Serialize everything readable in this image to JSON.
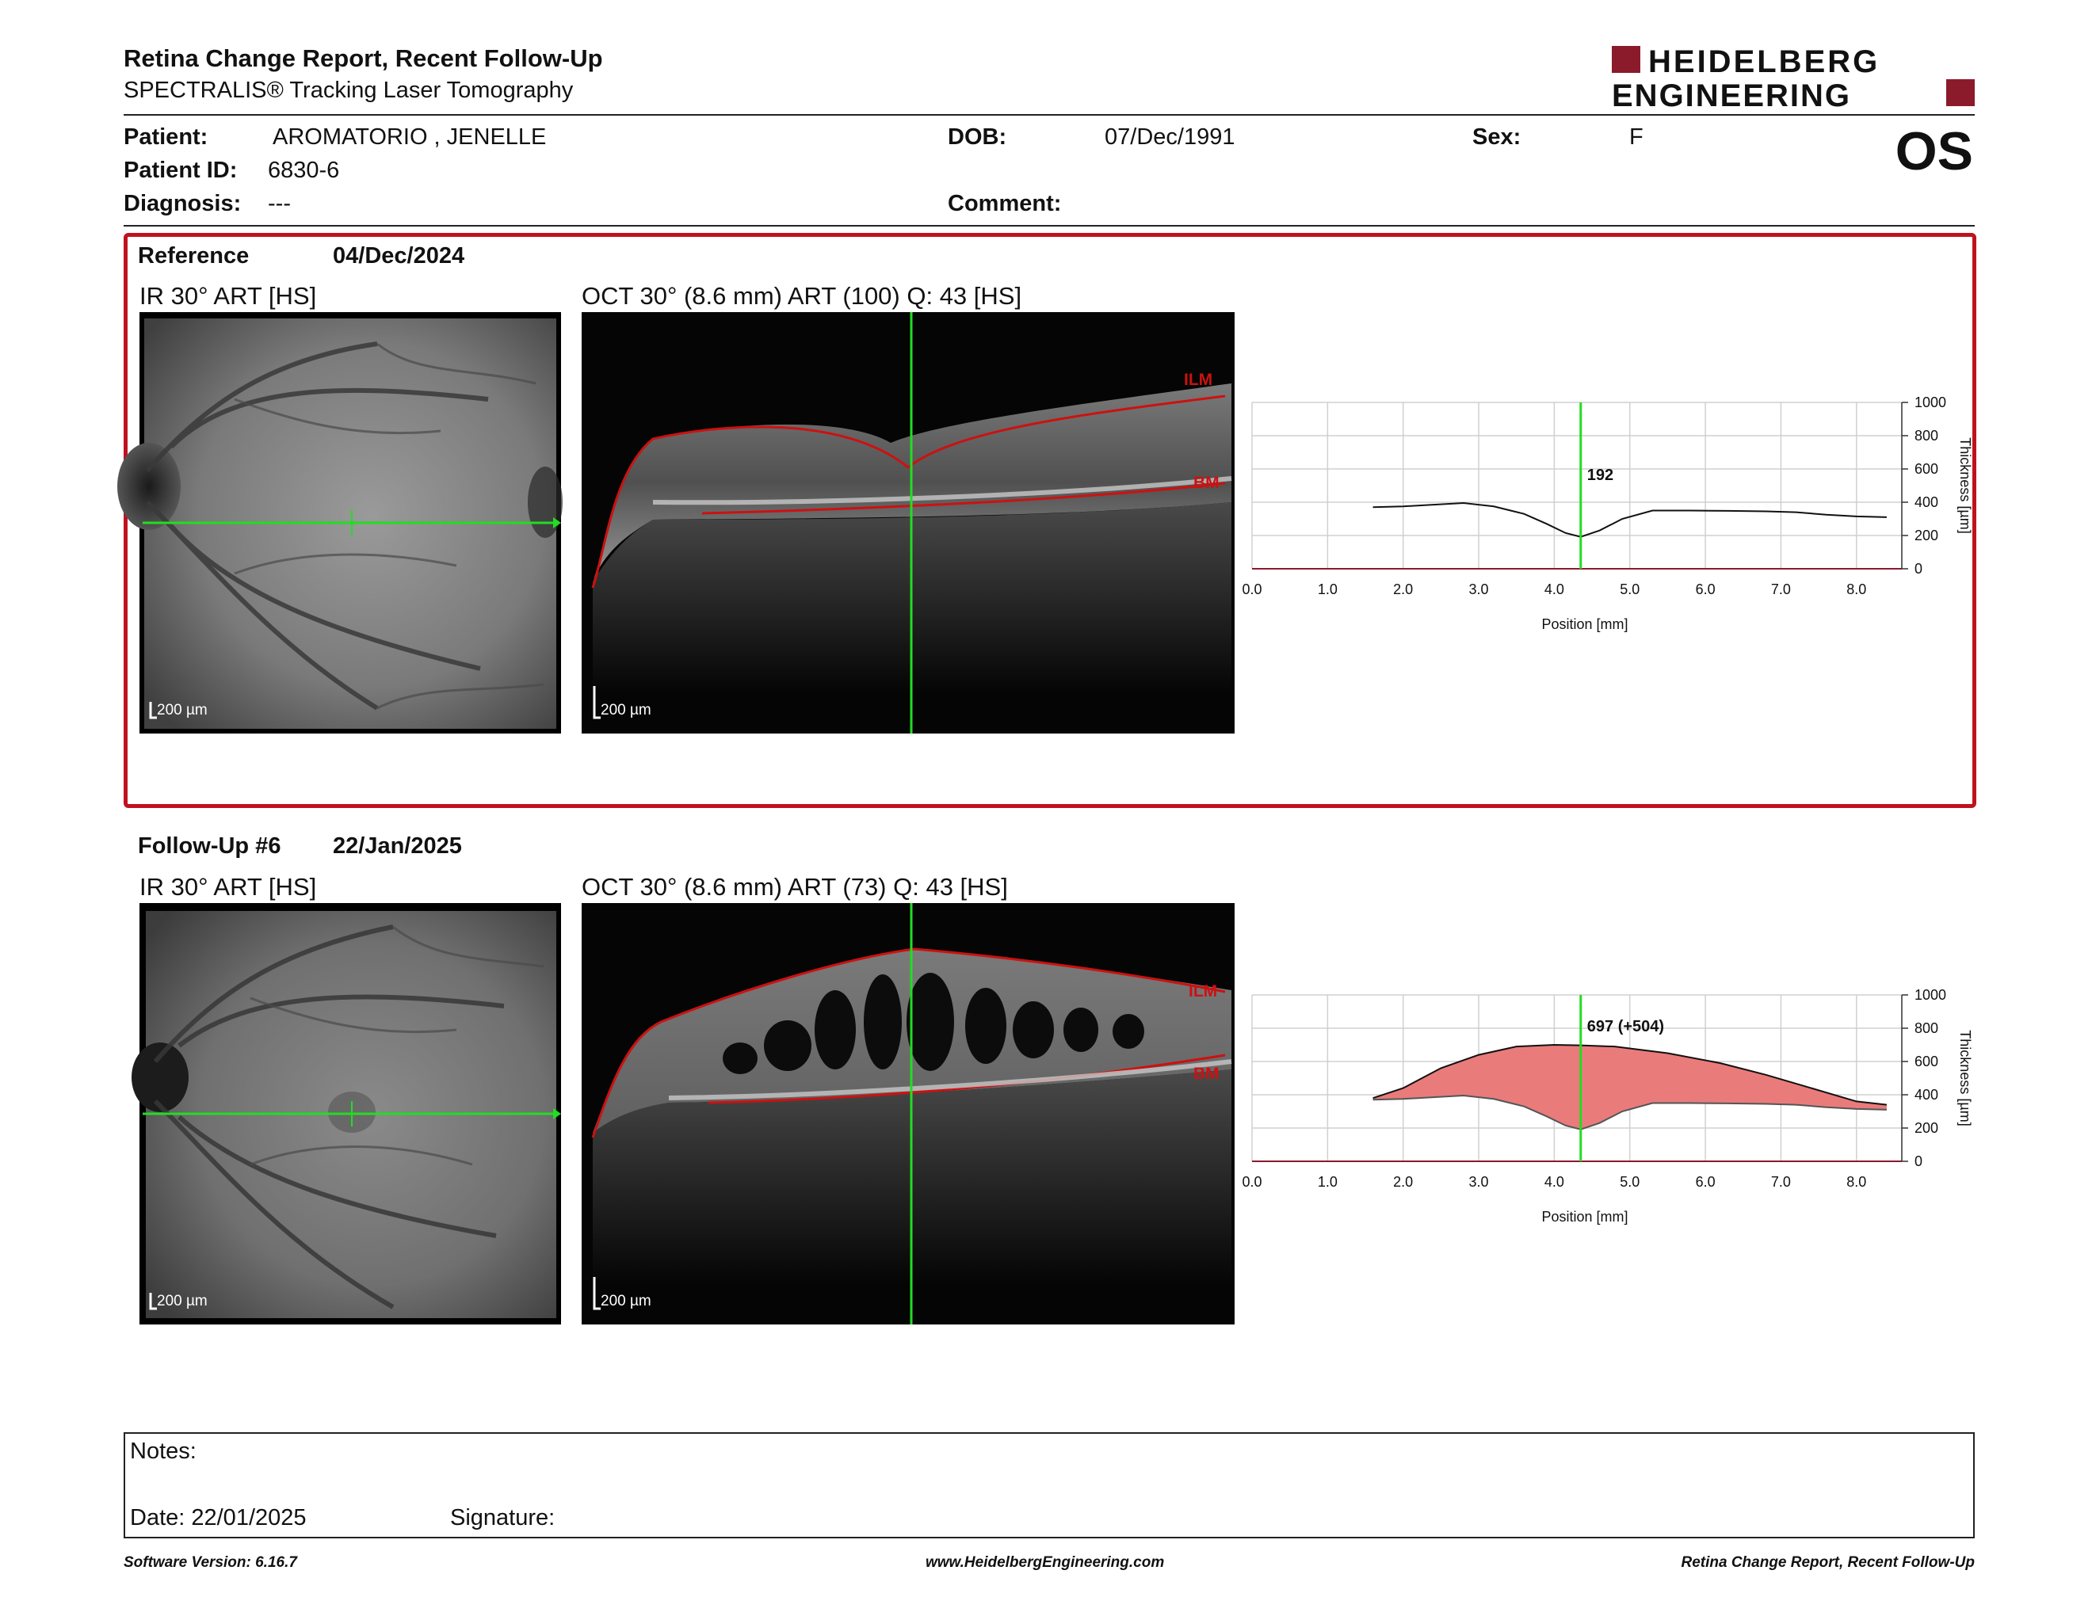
{
  "header": {
    "title": "Retina Change Report, Recent Follow-Up",
    "subtitle": "SPECTRALIS® Tracking Laser Tomography",
    "logo_line1": "HEIDELBERG",
    "logo_line2": "ENGINEERING",
    "eye": "OS"
  },
  "patient": {
    "name_label": "Patient:",
    "name": "AROMATORIO , JENELLE",
    "id_label": "Patient ID:",
    "id": "6830-6",
    "diagnosis_label": "Diagnosis:",
    "diagnosis": "---",
    "dob_label": "DOB:",
    "dob": "07/Dec/1991",
    "comment_label": "Comment:",
    "sex_label": "Sex:",
    "sex": "F"
  },
  "reference": {
    "label": "Reference",
    "date": "04/Dec/2024",
    "ir_title": "IR 30° ART [HS]",
    "oct_title": "OCT 30° (8.6 mm) ART (100) Q: 43 [HS]",
    "scale": "200 µm",
    "layer_top": "ILM",
    "layer_bottom": "BM"
  },
  "followup": {
    "label": "Follow-Up #6",
    "date": "22/Jan/2025",
    "ir_title": "IR 30° ART [HS]",
    "oct_title": "OCT 30° (8.6 mm) ART (73) Q: 43 [HS]",
    "scale": "200 µm",
    "layer_top": "ILM",
    "layer_bottom": "BM"
  },
  "notes": {
    "notes_label": "Notes:",
    "date_label": "Date: 22/01/2025",
    "signature_label": "Signature:"
  },
  "footer": {
    "left": "Software Version: 6.16.7",
    "center": "www.HeidelbergEngineering.com",
    "right": "Retina Change Report, Recent Follow-Up"
  },
  "colors": {
    "brand": "#8b1a2b",
    "frame": "#c0121e",
    "cursor": "#22dd22",
    "layer": "#cc1111",
    "fill": "#ea7b7b"
  },
  "chart_data": [
    {
      "type": "line",
      "xlabel": "Position [mm]",
      "ylabel": "Thickness [µm]",
      "xlim": [
        0,
        8.6
      ],
      "ylim": [
        0,
        1000
      ],
      "x_ticks": [
        "0.0",
        "1.0",
        "2.0",
        "3.0",
        "4.0",
        "5.0",
        "6.0",
        "7.0",
        "8.0"
      ],
      "y_ticks": [
        "0",
        "200",
        "400",
        "600",
        "800",
        "1000"
      ],
      "cursor_x": 4.35,
      "cursor_label": "192",
      "grid": true,
      "series": [
        {
          "x": [
            1.6,
            2.0,
            2.4,
            2.8,
            3.2,
            3.6,
            3.9,
            4.15,
            4.35,
            4.6,
            4.9,
            5.3,
            5.8,
            6.3,
            6.8,
            7.2,
            7.6,
            8.0,
            8.4
          ],
          "values": [
            370,
            375,
            385,
            395,
            375,
            330,
            270,
            215,
            192,
            230,
            300,
            350,
            350,
            348,
            345,
            340,
            325,
            315,
            310
          ]
        }
      ]
    },
    {
      "type": "area",
      "xlabel": "Position [mm]",
      "ylabel": "Thickness [µm]",
      "xlim": [
        0,
        8.6
      ],
      "ylim": [
        0,
        1000
      ],
      "x_ticks": [
        "0.0",
        "1.0",
        "2.0",
        "3.0",
        "4.0",
        "5.0",
        "6.0",
        "7.0",
        "8.0"
      ],
      "y_ticks": [
        "0",
        "200",
        "400",
        "600",
        "800",
        "1000"
      ],
      "cursor_x": 4.35,
      "cursor_label": "697 (+504)",
      "grid": true,
      "series": [
        {
          "x": [
            1.6,
            2.0,
            2.5,
            3.0,
            3.5,
            4.0,
            4.35,
            4.8,
            5.5,
            6.2,
            6.8,
            7.4,
            8.0,
            8.4
          ],
          "values": [
            380,
            440,
            560,
            640,
            690,
            700,
            697,
            690,
            650,
            590,
            520,
            440,
            360,
            340
          ]
        },
        {
          "x": [
            1.6,
            2.0,
            2.4,
            2.8,
            3.2,
            3.6,
            3.9,
            4.15,
            4.35,
            4.6,
            4.9,
            5.3,
            5.8,
            6.3,
            6.8,
            7.2,
            7.6,
            8.0,
            8.4
          ],
          "values": [
            370,
            375,
            385,
            395,
            375,
            330,
            270,
            215,
            192,
            230,
            300,
            350,
            350,
            348,
            345,
            340,
            325,
            315,
            310
          ]
        }
      ]
    }
  ]
}
